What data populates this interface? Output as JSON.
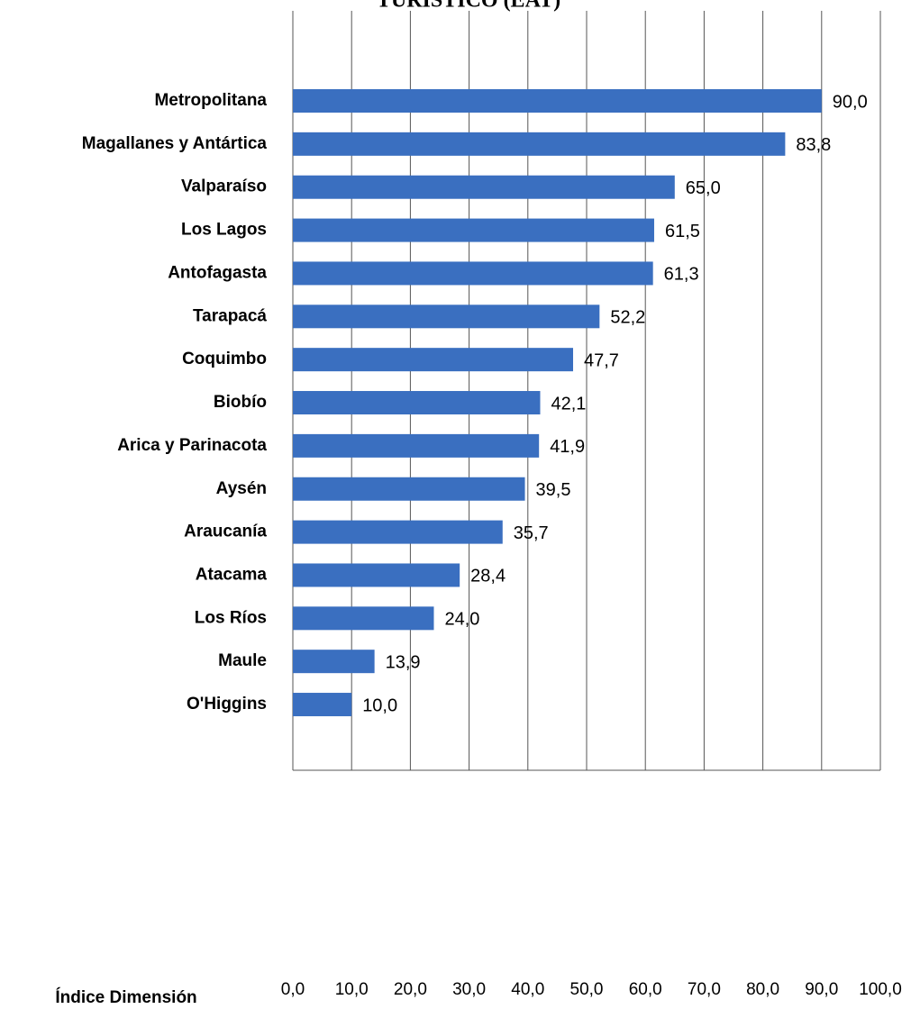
{
  "chart_data": {
    "type": "barh",
    "title": "TURÍSTICO (EAT)",
    "xlabel": "Índice Dimensión",
    "categories": [
      "Metropolitana",
      "Magallanes y Antártica",
      "Valparaíso",
      "Los Lagos",
      "Antofagasta",
      "Tarapacá",
      "Coquimbo",
      "Biobío",
      "Arica y Parinacota",
      "Aysén",
      "Araucanía",
      "Atacama",
      "Los Ríos",
      "Maule",
      "O'Higgins"
    ],
    "values": [
      90.0,
      83.8,
      65.0,
      61.5,
      61.3,
      52.2,
      47.7,
      42.1,
      41.9,
      39.5,
      35.7,
      28.4,
      24.0,
      13.9,
      10.0
    ],
    "value_labels": [
      "90,0",
      "83,8",
      "65,0",
      "61,5",
      "61,3",
      "52,2",
      "47,7",
      "42,1",
      "41,9",
      "39,5",
      "35,7",
      "28,4",
      "24,0",
      "13,9",
      "10,0"
    ],
    "color": "#3a6fc0",
    "xlim": [
      0,
      100
    ],
    "xticks": [
      {
        "value": 0,
        "label": "0,0"
      },
      {
        "value": 10,
        "label": "10,0"
      },
      {
        "value": 20,
        "label": "20,0"
      },
      {
        "value": 30,
        "label": "30,0"
      },
      {
        "value": 40,
        "label": "40,0"
      },
      {
        "value": 50,
        "label": "50,0"
      },
      {
        "value": 60,
        "label": "60,0"
      },
      {
        "value": 70,
        "label": "70,0"
      },
      {
        "value": 80,
        "label": "80,0"
      },
      {
        "value": 90,
        "label": "90,0"
      },
      {
        "value": 100,
        "label": "100,0"
      }
    ],
    "grid": true
  }
}
